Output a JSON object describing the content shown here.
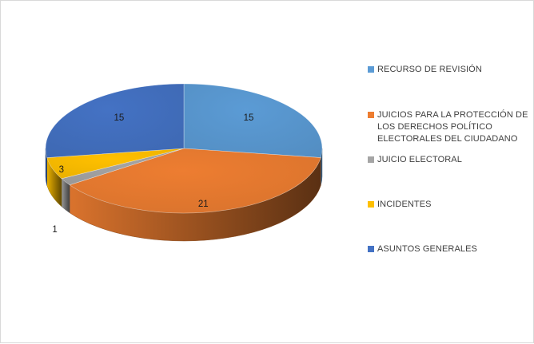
{
  "chart_data": {
    "type": "pie",
    "style": "3d",
    "legend_position": "right",
    "categories": [
      "RECURSO DE REVISIÓN",
      "JUICIOS PARA LA PROTECCIÓN DE LOS DERECHOS POLÍTICO ELECTORALES DEL CIUDADANO",
      "JUICIO ELECTORAL",
      "INCIDENTES",
      "ASUNTOS GENERALES"
    ],
    "values": [
      15,
      21,
      1,
      3,
      15
    ],
    "colors": [
      "#5b9bd5",
      "#ed7d31",
      "#a5a5a5",
      "#ffc000",
      "#4472c4"
    ],
    "legend": [
      {
        "lines": [
          "RECURSO DE REVISIÓN"
        ]
      },
      {
        "lines": [
          "JUICIOS PARA LA PROTECCIÓN DE",
          "LOS DERECHOS POLÍTICO",
          "ELECTORALES DEL CIUDADANO"
        ]
      },
      {
        "lines": [
          "JUICIO ELECTORAL"
        ]
      },
      {
        "lines": [
          "INCIDENTES"
        ]
      },
      {
        "lines": [
          "ASUNTOS GENERALES"
        ]
      }
    ]
  }
}
